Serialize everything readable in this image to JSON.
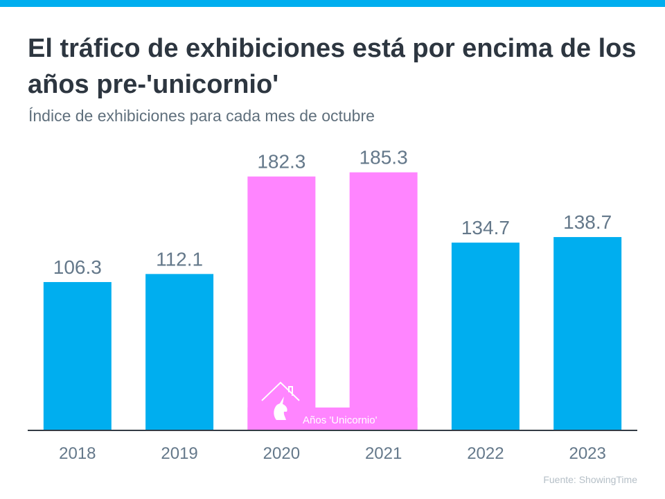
{
  "header": {
    "title": "El tráfico de exhibiciones está por encima de los años pre-'unicornio'",
    "subtitle": "Índice de exhibiciones para cada mes de octubre"
  },
  "footer": {
    "source": "Fuente:  ShowingTime"
  },
  "colors": {
    "accent": "#00aeef",
    "normal_bar": "#00aeef",
    "unicorn_bar": "#ff85ff",
    "axis": "#333b44",
    "text": "#64788a"
  },
  "chart_data": {
    "type": "bar",
    "title": "El tráfico de exhibiciones está por encima de los años pre-'unicornio'",
    "subtitle": "Índice de exhibiciones para cada mes de octubre",
    "xlabel": "",
    "ylabel": "",
    "categories": [
      "2018",
      "2019",
      "2020",
      "2021",
      "2022",
      "2023"
    ],
    "values": [
      106.3,
      112.1,
      182.3,
      185.3,
      134.7,
      138.7
    ],
    "value_labels": [
      "106.3",
      "112.1",
      "182.3",
      "185.3",
      "134.7",
      "138.7"
    ],
    "highlight": {
      "categories": [
        "2020",
        "2021"
      ],
      "label": "Años 'Unicornio'",
      "icon": "unicorn-house-icon"
    },
    "ylim": [
      0,
      200
    ],
    "grid": false,
    "legend": "none",
    "source": "Fuente:  ShowingTime"
  }
}
